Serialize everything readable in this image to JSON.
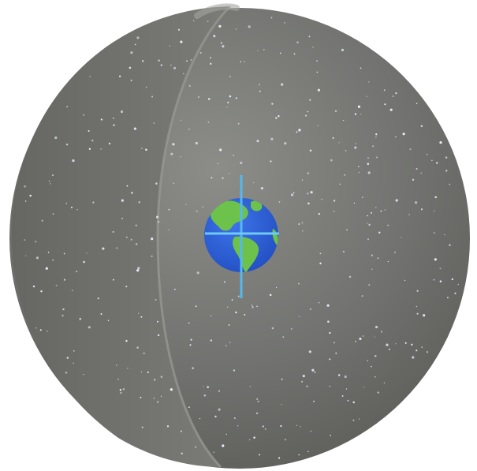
{
  "diagram": {
    "title": "",
    "description_label": "",
    "colors": {
      "background": "#ffffff",
      "celestial_sphere": "#6e6f6b",
      "sphere_highlight": "#8a8b86",
      "sphere_shadow": "#5c5d59",
      "front_cap_edge": "#9a9b96",
      "stars": "#eef0ff",
      "earth_ocean": "#2f5fd6",
      "earth_land": "#6cc24a",
      "axis_line": "#55b8f0",
      "equator_line": "#6ec9ff"
    },
    "elements": [
      {
        "name": "celestial-sphere",
        "kind": "sphere"
      },
      {
        "name": "sphere-cutaway-edge",
        "kind": "hemisphere-edge"
      },
      {
        "name": "star-field",
        "kind": "stars"
      },
      {
        "name": "earth-globe",
        "kind": "globe"
      },
      {
        "name": "earth-rotation-axis",
        "kind": "axis"
      },
      {
        "name": "celestial-equator-line",
        "kind": "equator"
      }
    ]
  }
}
